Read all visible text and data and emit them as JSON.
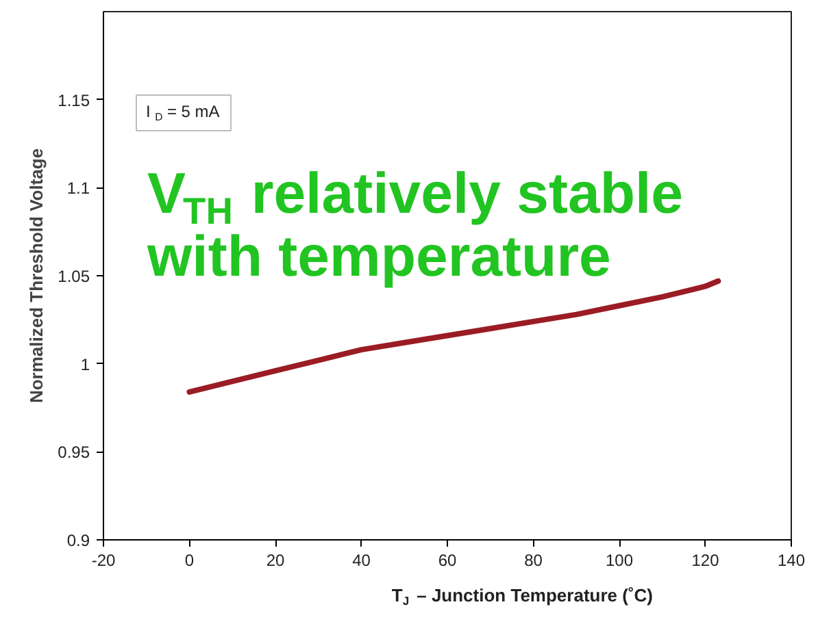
{
  "chart_data": {
    "type": "line",
    "xlabel": "T$_{J}$ – Junction Temperature (˚C)",
    "ylabel": "Normalized Threshold Voltage",
    "annotations": [
      "I$_{D}$ = 5 mA",
      "V$_{TH}$ relatively stable\nwith temperature"
    ],
    "x": [
      0,
      10,
      20,
      30,
      40,
      50,
      60,
      70,
      80,
      90,
      100,
      110,
      120,
      123
    ],
    "series": [
      {
        "color": "#9b1c24",
        "values": [
          0.984,
          0.99,
          0.996,
          1.002,
          1.008,
          1.012,
          1.016,
          1.02,
          1.024,
          1.028,
          1.033,
          1.038,
          1.044,
          1.047
        ]
      }
    ],
    "xlim": [
      -20,
      140
    ],
    "xticks": [
      -20,
      0,
      20,
      40,
      60,
      80,
      100,
      120,
      140
    ],
    "ylim": [
      0.9,
      1.2
    ],
    "yticks": [
      0.9,
      0.95,
      1,
      1.05,
      1.1,
      1.15
    ],
    "grid": false,
    "marker": "none",
    "line_style": "solid"
  }
}
